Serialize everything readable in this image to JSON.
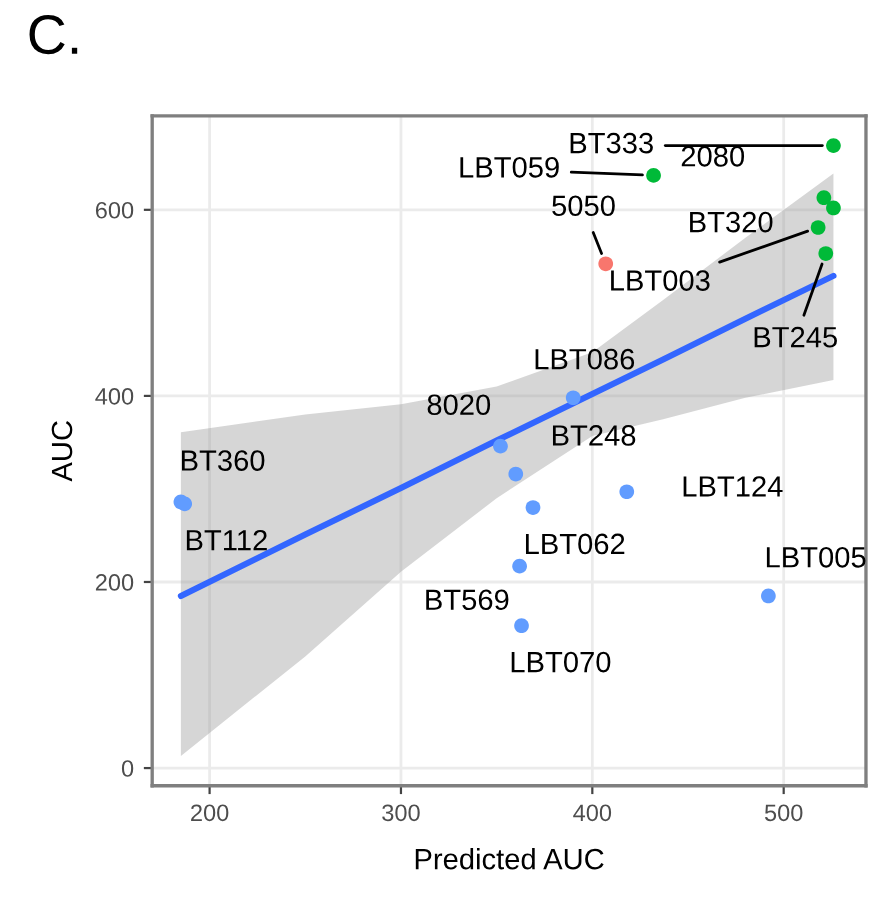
{
  "chart_data": {
    "type": "scatter",
    "title": "C.",
    "xlabel": "Predicted AUC",
    "ylabel": "AUC",
    "xlim": [
      170,
      543
    ],
    "ylim": [
      -19,
      701
    ],
    "xticks": [
      200,
      300,
      400,
      500
    ],
    "yticks": [
      0,
      200,
      400,
      600
    ],
    "grid": true,
    "series": [
      {
        "marker": "circle",
        "color": "#00ba38",
        "x": [
          526,
          432,
          521,
          526,
          518,
          522
        ],
        "values": [
          669,
          637,
          613,
          602,
          581,
          553
        ]
      },
      {
        "marker": "circle",
        "color": "#f8766d",
        "x": [
          407
        ],
        "values": [
          542
        ]
      },
      {
        "marker": "circle",
        "color": "#619cff",
        "x": [
          390,
          352,
          360,
          418,
          185,
          187,
          369,
          362,
          363,
          492
        ],
        "values": [
          398,
          346,
          316,
          297,
          286,
          284,
          280,
          217,
          153,
          185
        ]
      },
      {
        "type": "line",
        "color": "#3366ff",
        "x": [
          185,
          250,
          300,
          350,
          400,
          437,
          480,
          526
        ],
        "values": [
          185,
          251,
          301,
          352,
          402,
          439,
          483,
          529
        ],
        "lower": [
          13,
          120,
          211,
          290,
          357,
          375,
          398,
          417
        ],
        "upper": [
          361,
          380,
          391,
          410,
          447,
          503,
          570,
          639
        ]
      }
    ],
    "annotations": [
      {
        "text": "BT333",
        "x": 526,
        "y": 669
      },
      {
        "text": "LBT059",
        "x": 432,
        "y": 637
      },
      {
        "text": "2080",
        "x": 521,
        "y": 613
      },
      {
        "text": "BT320",
        "x": 526,
        "y": 602
      },
      {
        "text": "LBT003",
        "x": 518,
        "y": 581
      },
      {
        "text": "BT245",
        "x": 522,
        "y": 553
      },
      {
        "text": "5050",
        "x": 407,
        "y": 542
      },
      {
        "text": "LBT086",
        "x": 390,
        "y": 398
      },
      {
        "text": "8020",
        "x": 352,
        "y": 346
      },
      {
        "text": "BT248",
        "x": 360,
        "y": 316
      },
      {
        "text": "LBT124",
        "x": 418,
        "y": 297
      },
      {
        "text": "BT360",
        "x": 185,
        "y": 286
      },
      {
        "text": "BT112",
        "x": 187,
        "y": 284
      },
      {
        "text": "LBT062",
        "x": 369,
        "y": 280
      },
      {
        "text": "BT569",
        "x": 362,
        "y": 217
      },
      {
        "text": "LBT070",
        "x": 363,
        "y": 153
      },
      {
        "text": "LBT005",
        "x": 492,
        "y": 185
      }
    ]
  }
}
